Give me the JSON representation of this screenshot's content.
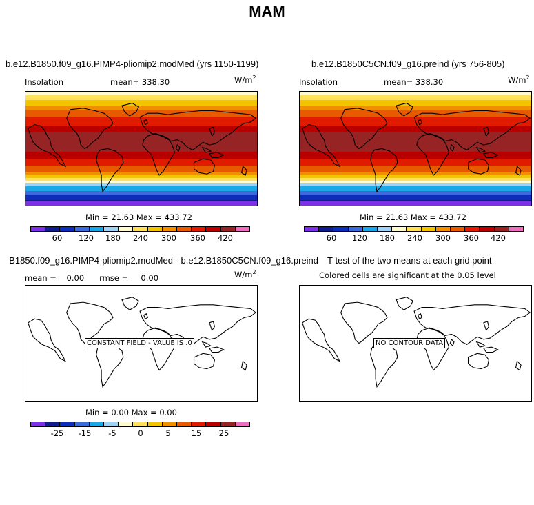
{
  "main_title": "MAM",
  "colors": [
    "#7e30e6",
    "#0e1d8a",
    "#0c2eb8",
    "#3b6bd8",
    "#1ba8e6",
    "#9fd3f5",
    "#fffbd0",
    "#ffe25a",
    "#f3c400",
    "#f18f00",
    "#e85a00",
    "#e01b00",
    "#b80000",
    "#962424",
    "#ed6fc0"
  ],
  "panels": [
    {
      "title": "b.e12.B1850.f09_g16.PIMP4-pliomip2.modMed (yrs 1150-1199)",
      "left_label": "Insolation",
      "center_label": "mean=  338.30",
      "units": "W/m",
      "units_sup": "2",
      "minmax": "Min =   21.63 Max = 433.72",
      "colorbar_ticks": [
        "60",
        "120",
        "180",
        "240",
        "300",
        "360",
        "420"
      ]
    },
    {
      "title": "b.e12.B1850C5CN.f09_g16.preind (yrs 756-805)",
      "left_label": "Insolation",
      "center_label": "mean=  338.30",
      "units": "W/m",
      "units_sup": "2",
      "minmax": "Min =   21.63 Max = 433.72",
      "colorbar_ticks": [
        "60",
        "120",
        "180",
        "240",
        "300",
        "360",
        "420"
      ]
    },
    {
      "title": "B1850.f09_g16.PIMP4-pliomip2.modMed - b.e12.B1850C5CN.f09_g16.preind",
      "left_label": "mean =    0.00      rmse =     0.00",
      "units": "W/m",
      "units_sup": "2",
      "box_label": "CONSTANT FIELD - VALUE IS .0",
      "minmax": "Min =    0.00 Max =    0.00",
      "colorbar_ticks": [
        "-25",
        "-15",
        "-5",
        "0",
        "5",
        "15",
        "25"
      ]
    },
    {
      "title": "T-test of the two means at each grid point",
      "subtitle": "Colored cells are significant at the 0.05 level",
      "box_label": "NO CONTOUR DATA"
    }
  ]
}
